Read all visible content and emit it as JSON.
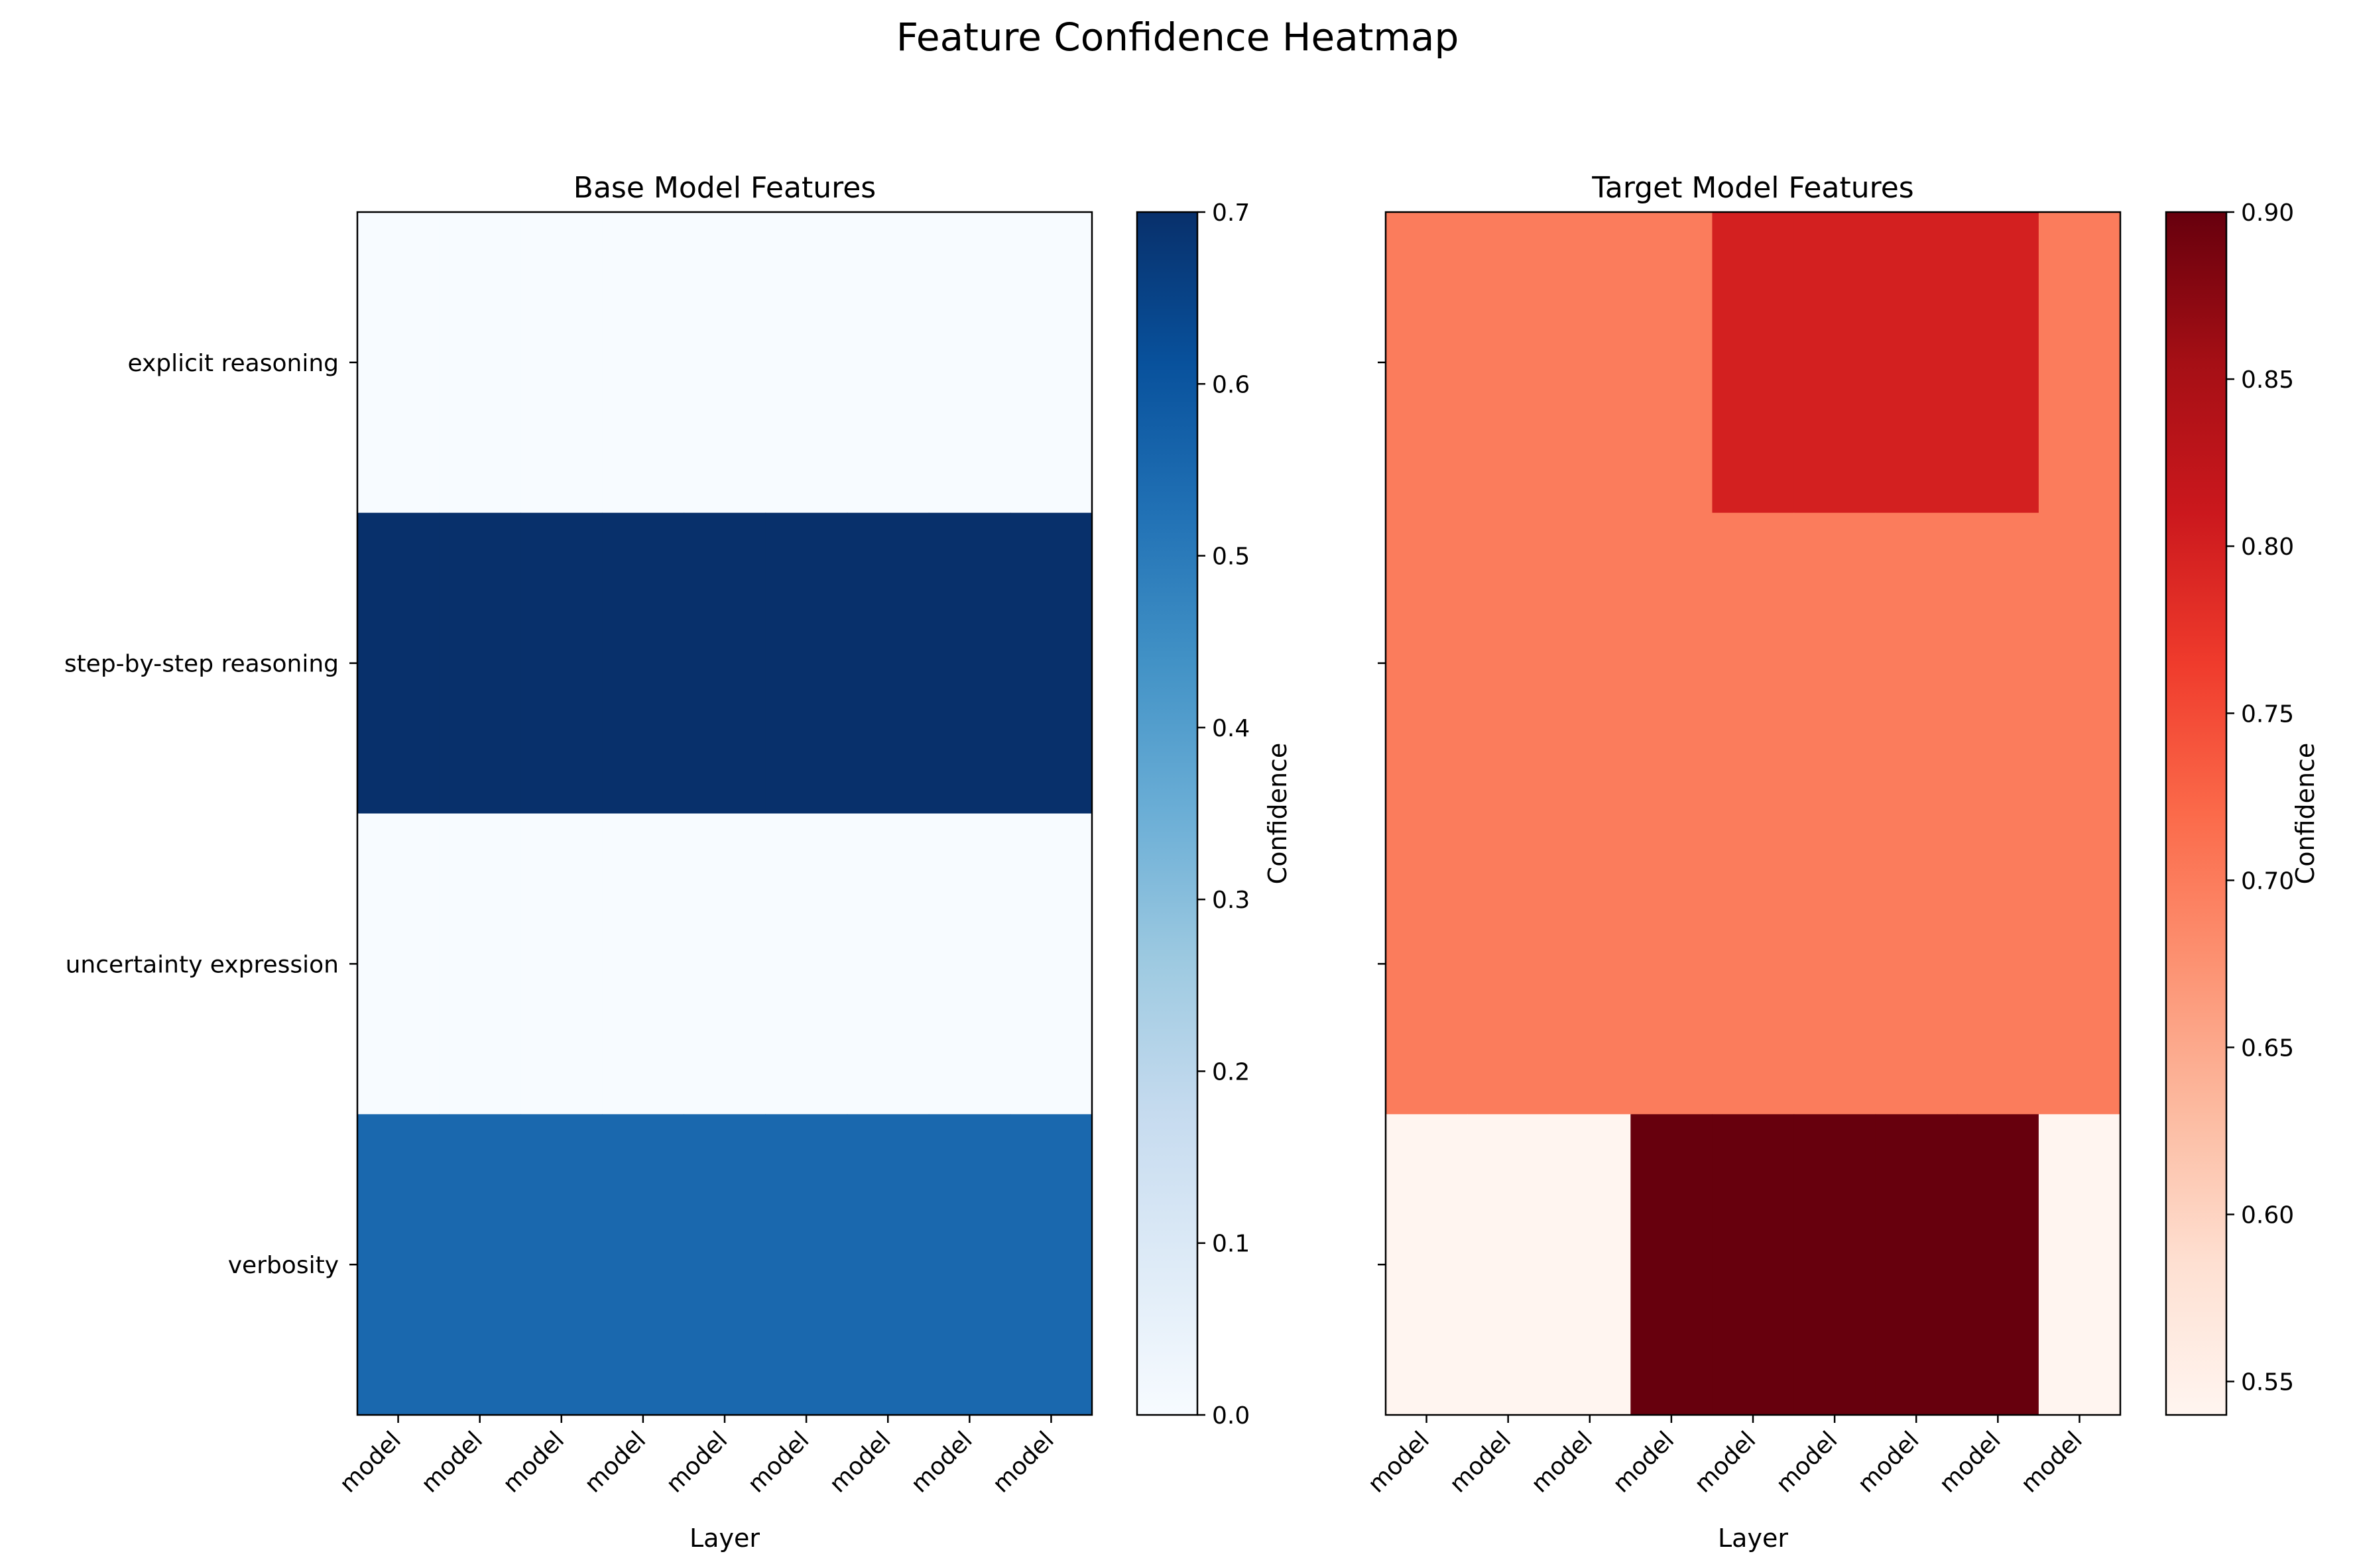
{
  "figure": {
    "title": "Feature Confidence Heatmap"
  },
  "chart_data": [
    {
      "type": "heatmap",
      "title": "Base Model Features",
      "xlabel": "Layer",
      "ylabel": "",
      "x_tick_labels": [
        "model",
        "model",
        "model",
        "model",
        "model",
        "model",
        "model",
        "model",
        "model"
      ],
      "y_tick_labels": [
        "explicit reasoning",
        "step-by-step reasoning",
        "uncertainty expression",
        "verbosity"
      ],
      "values": [
        [
          0.0,
          0.0,
          0.0,
          0.0,
          0.0,
          0.0,
          0.0,
          0.0,
          0.0
        ],
        [
          0.7,
          0.7,
          0.7,
          0.7,
          0.7,
          0.7,
          0.7,
          0.7,
          0.7
        ],
        [
          0.0,
          0.0,
          0.0,
          0.0,
          0.0,
          0.0,
          0.0,
          0.0,
          0.0
        ],
        [
          0.55,
          0.55,
          0.55,
          0.55,
          0.55,
          0.55,
          0.55,
          0.55,
          0.55
        ]
      ],
      "colormap": "Blues",
      "colormap_stops": [
        "#f7fbff",
        "#deebf7",
        "#c6dbef",
        "#9ecae1",
        "#6baed6",
        "#4292c6",
        "#2171b5",
        "#08519c",
        "#08306b"
      ],
      "vmin": 0.0,
      "vmax": 0.7,
      "colorbar": {
        "label": "Confidence",
        "ticks": [
          0.0,
          0.1,
          0.2,
          0.3,
          0.4,
          0.5,
          0.6,
          0.7
        ],
        "tick_labels": [
          "0.0",
          "0.1",
          "0.2",
          "0.3",
          "0.4",
          "0.5",
          "0.6",
          "0.7"
        ]
      }
    },
    {
      "type": "heatmap",
      "title": "Target Model Features",
      "xlabel": "Layer",
      "ylabel": "",
      "x_tick_labels": [
        "model",
        "model",
        "model",
        "model",
        "model",
        "model",
        "model",
        "model",
        "model"
      ],
      "y_tick_labels": [
        "explicit reasoning",
        "step-by-step reasoning",
        "uncertainty expression",
        "verbosity"
      ],
      "values": [
        [
          0.7,
          0.7,
          0.7,
          0.7,
          0.8,
          0.8,
          0.8,
          0.8,
          0.7
        ],
        [
          0.7,
          0.7,
          0.7,
          0.7,
          0.7,
          0.7,
          0.7,
          0.7,
          0.7
        ],
        [
          0.7,
          0.7,
          0.7,
          0.7,
          0.7,
          0.7,
          0.7,
          0.7,
          0.7
        ],
        [
          0.54,
          0.54,
          0.54,
          0.9,
          0.9,
          0.9,
          0.9,
          0.9,
          0.54
        ]
      ],
      "colormap": "Reds",
      "colormap_stops": [
        "#fff5f0",
        "#fee0d2",
        "#fcbba1",
        "#fc9272",
        "#fb6a4a",
        "#ef3b2c",
        "#cb181d",
        "#a50f15",
        "#67000d"
      ],
      "vmin": 0.54,
      "vmax": 0.9,
      "colorbar": {
        "label": "Confidence",
        "ticks": [
          0.55,
          0.6,
          0.65,
          0.7,
          0.75,
          0.8,
          0.85,
          0.9
        ],
        "tick_labels": [
          "0.55",
          "0.60",
          "0.65",
          "0.70",
          "0.75",
          "0.80",
          "0.85",
          "0.90"
        ]
      }
    }
  ]
}
